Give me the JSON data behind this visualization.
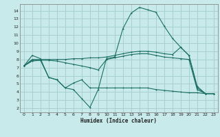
{
  "bg_color": "#c8eaea",
  "grid_color": "#a8d0d0",
  "line_color": "#1a6e64",
  "xlabel": "Humidex (Indice chaleur)",
  "xlim": [
    -0.5,
    23.5
  ],
  "ylim": [
    1.5,
    14.8
  ],
  "yticks": [
    2,
    3,
    4,
    5,
    6,
    7,
    8,
    9,
    10,
    11,
    12,
    13,
    14
  ],
  "xticks": [
    0,
    1,
    2,
    3,
    4,
    5,
    6,
    7,
    8,
    9,
    10,
    11,
    12,
    13,
    14,
    15,
    16,
    17,
    18,
    19,
    20,
    21,
    22,
    23
  ],
  "line1_x": [
    0,
    1,
    2,
    3,
    4,
    5,
    6,
    7,
    8,
    9,
    10,
    11,
    12,
    13,
    14,
    15,
    16,
    17,
    18,
    19,
    20,
    21,
    22,
    23
  ],
  "line1_y": [
    7.2,
    8.5,
    8.1,
    5.8,
    5.5,
    4.5,
    4.3,
    3.2,
    2.1,
    4.3,
    8.1,
    8.3,
    11.8,
    13.7,
    14.4,
    14.1,
    13.8,
    12.1,
    10.6,
    9.5,
    8.5,
    4.7,
    3.8,
    3.8
  ],
  "line2_x": [
    0,
    1,
    2,
    3,
    4,
    5,
    6,
    7,
    8,
    9,
    10,
    11,
    12,
    13,
    14,
    15,
    16,
    17,
    18,
    19,
    20,
    21,
    22,
    23
  ],
  "line2_y": [
    7.2,
    8.0,
    8.0,
    8.0,
    8.0,
    8.0,
    8.1,
    8.1,
    8.2,
    8.2,
    8.3,
    8.5,
    8.7,
    8.9,
    9.0,
    9.0,
    8.9,
    8.7,
    8.6,
    9.5,
    8.5,
    4.5,
    3.8,
    3.8
  ],
  "line3_x": [
    0,
    1,
    2,
    3,
    4,
    5,
    6,
    7,
    8,
    9,
    10,
    11,
    12,
    13,
    14,
    15,
    16,
    17,
    18,
    19,
    20,
    21,
    22,
    23
  ],
  "line3_y": [
    7.2,
    7.9,
    7.9,
    7.9,
    7.8,
    7.6,
    7.4,
    7.2,
    7.0,
    6.7,
    8.0,
    8.2,
    8.4,
    8.6,
    8.7,
    8.7,
    8.5,
    8.3,
    8.2,
    8.1,
    8.0,
    4.3,
    3.8,
    3.8
  ],
  "line4_x": [
    0,
    1,
    2,
    3,
    4,
    5,
    6,
    7,
    8,
    9,
    10,
    11,
    12,
    13,
    14,
    15,
    16,
    17,
    18,
    19,
    20,
    21,
    22,
    23
  ],
  "line4_y": [
    7.2,
    7.8,
    7.9,
    5.8,
    5.5,
    4.5,
    5.1,
    5.5,
    4.5,
    4.5,
    4.5,
    4.5,
    4.5,
    4.5,
    4.5,
    4.5,
    4.3,
    4.2,
    4.1,
    4.0,
    3.9,
    3.9,
    3.8,
    3.8
  ]
}
